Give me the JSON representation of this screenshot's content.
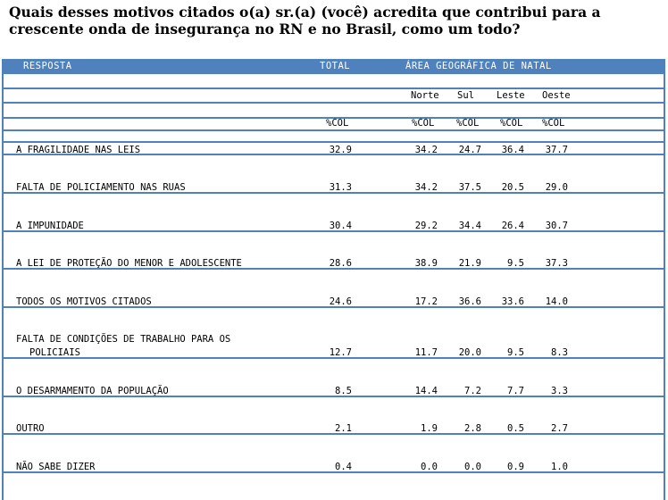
{
  "question": "Quais desses motivos citados o(a) sr.(a) (você) acredita que contribui para a crescente onda de insegurança no RN e no Brasil, como um todo?",
  "header": {
    "resposta": "RESPOSTA",
    "total": "TOTAL",
    "area": "ÁREA GEOGRÁFICA DE NATAL"
  },
  "subheaders": [
    "Norte",
    "Sul",
    "Leste",
    "Oeste"
  ],
  "col_label": "%COL",
  "rows": [
    {
      "label": "A FRAGILIDADE NAS LEIS",
      "label2": "",
      "total": "32.9",
      "norte": "34.2",
      "sul": "24.7",
      "leste": "36.4",
      "oeste": "37.7"
    },
    {
      "label": "FALTA DE POLICIAMENTO NAS RUAS",
      "label2": "",
      "total": "31.3",
      "norte": "34.2",
      "sul": "37.5",
      "leste": "20.5",
      "oeste": "29.0"
    },
    {
      "label": "A IMPUNIDADE",
      "label2": "",
      "total": "30.4",
      "norte": "29.2",
      "sul": "34.4",
      "leste": "26.4",
      "oeste": "30.7"
    },
    {
      "label": "A LEI DE PROTEÇÃO DO MENOR E ADOLESCENTE",
      "label2": "",
      "total": "28.6",
      "norte": "38.9",
      "sul": "21.9",
      "leste": "9.5",
      "oeste": "37.3"
    },
    {
      "label": "TODOS OS MOTIVOS CITADOS",
      "label2": "",
      "total": "24.6",
      "norte": "17.2",
      "sul": "36.6",
      "leste": "33.6",
      "oeste": "14.0"
    },
    {
      "label": "FALTA DE CONDIÇÕES DE TRABALHO PARA OS",
      "label2": "POLICIAIS",
      "total": "12.7",
      "norte": "11.7",
      "sul": "20.0",
      "leste": "9.5",
      "oeste": "8.3"
    },
    {
      "label": "O DESARMAMENTO DA POPULAÇÃO",
      "label2": "",
      "total": "8.5",
      "norte": "14.4",
      "sul": "7.2",
      "leste": "7.7",
      "oeste": "3.3"
    },
    {
      "label": "OUTRO",
      "label2": "",
      "total": "2.1",
      "norte": "1.9",
      "sul": "2.8",
      "leste": "0.5",
      "oeste": "2.7"
    },
    {
      "label": "NÃO SABE DIZER",
      "label2": "",
      "total": "0.4",
      "norte": "0.0",
      "sul": "0.0",
      "leste": "0.9",
      "oeste": "1.0"
    }
  ]
}
